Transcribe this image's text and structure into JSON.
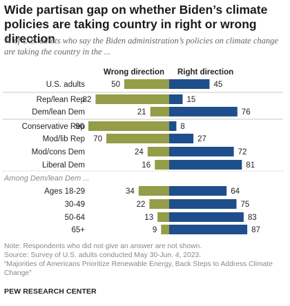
{
  "title": "Wide partisan gap on whether Biden’s climate policies are taking country in right or wrong direction",
  "subtitle": "% of U.S. adults who say the Biden administration’s policies on climate change are taking the country in the ...",
  "colors": {
    "wrong": "#949d48",
    "right": "#1f4e8c",
    "text": "#222222",
    "muted": "#8a8a8a",
    "divider": "#c8c8c8"
  },
  "chart_data": {
    "type": "bar",
    "orientation": "horizontal-diverging",
    "title": "Wide partisan gap on whether Biden’s climate policies are taking country in right or wrong direction",
    "legend": [
      "Wrong direction",
      "Right direction"
    ],
    "categories": [
      "U.S. adults",
      "Rep/lean Rep",
      "Dem/lean Dem",
      "Conservative Rep",
      "Mod/lib Rep",
      "Mod/cons Dem",
      "Liberal Dem",
      "Ages 18-29",
      "30-49",
      "50-64",
      "65+"
    ],
    "series": [
      {
        "name": "Wrong direction",
        "values": [
          50,
          82,
          21,
          90,
          70,
          24,
          16,
          34,
          22,
          13,
          9
        ]
      },
      {
        "name": "Right direction",
        "values": [
          45,
          15,
          76,
          8,
          27,
          72,
          81,
          64,
          75,
          83,
          87
        ]
      }
    ],
    "section_label": "Among Dem/lean Dem ..."
  },
  "notes": {
    "note": "Note: Respondents who did not give an answer are not shown.",
    "source": "Source: Survey of U.S. adults conducted May 30-Jun. 4, 2023.",
    "report": "“Majorities of Americans Prioritize Renewable Energy, Back Steps to Address Climate Change”"
  },
  "footer": "PEW RESEARCH CENTER"
}
